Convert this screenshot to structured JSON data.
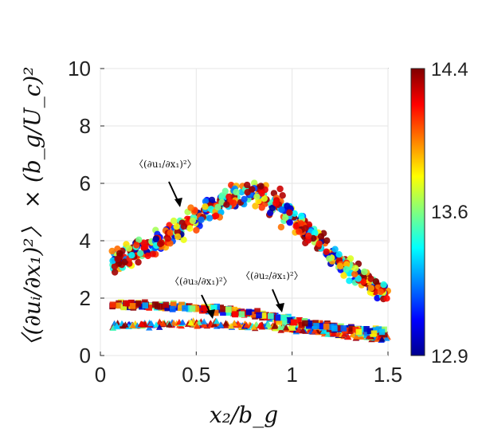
{
  "chart_data": {
    "type": "scatter",
    "title": "",
    "xlabel": "x₂/b_g",
    "ylabel": "〈(∂uᵢ/∂x₁)²〉 × (b_g/U_c)²",
    "xlim": [
      0,
      1.5
    ],
    "ylim": [
      0,
      10
    ],
    "xticks": [
      "0",
      "0.5",
      "1",
      "1.5"
    ],
    "yticks": [
      "0",
      "2",
      "4",
      "6",
      "8",
      "10"
    ],
    "grid": true,
    "colorbar": {
      "colormap": "jet",
      "range": [
        12.9,
        14.4
      ],
      "ticks": [
        "12.9",
        "13.6",
        "14.4"
      ]
    },
    "series": [
      {
        "name": "〈(∂u₁/∂x₁)²〉",
        "marker": "circle",
        "x": [
          0.05,
          0.15,
          0.25,
          0.35,
          0.45,
          0.55,
          0.65,
          0.75,
          0.8,
          0.85,
          0.95,
          1.05,
          1.15,
          1.25,
          1.35,
          1.45,
          1.5
        ],
        "y": [
          3.3,
          3.5,
          3.8,
          4.2,
          4.6,
          5.0,
          5.35,
          5.6,
          5.7,
          5.6,
          5.1,
          4.5,
          3.9,
          3.3,
          2.8,
          2.3,
          2.1
        ]
      },
      {
        "name": "〈(∂u₂/∂x₁)²〉",
        "marker": "square",
        "x": [
          0.05,
          0.2,
          0.4,
          0.6,
          0.8,
          1.0,
          1.2,
          1.4,
          1.5
        ],
        "y": [
          1.75,
          1.75,
          1.7,
          1.6,
          1.45,
          1.2,
          1.0,
          0.85,
          0.8
        ]
      },
      {
        "name": "〈(∂u₃/∂x₁)²〉",
        "marker": "triangle",
        "x": [
          0.05,
          0.2,
          0.4,
          0.6,
          0.8,
          1.0,
          1.2,
          1.4,
          1.5
        ],
        "y": [
          1.05,
          1.07,
          1.1,
          1.1,
          1.05,
          0.95,
          0.8,
          0.65,
          0.6
        ]
      }
    ],
    "annotations": [
      "〈(∂u₁/∂x₁)²〉",
      "〈(∂u₃/∂x₁)²〉",
      "〈(∂u₂/∂x₁)²〉"
    ]
  }
}
